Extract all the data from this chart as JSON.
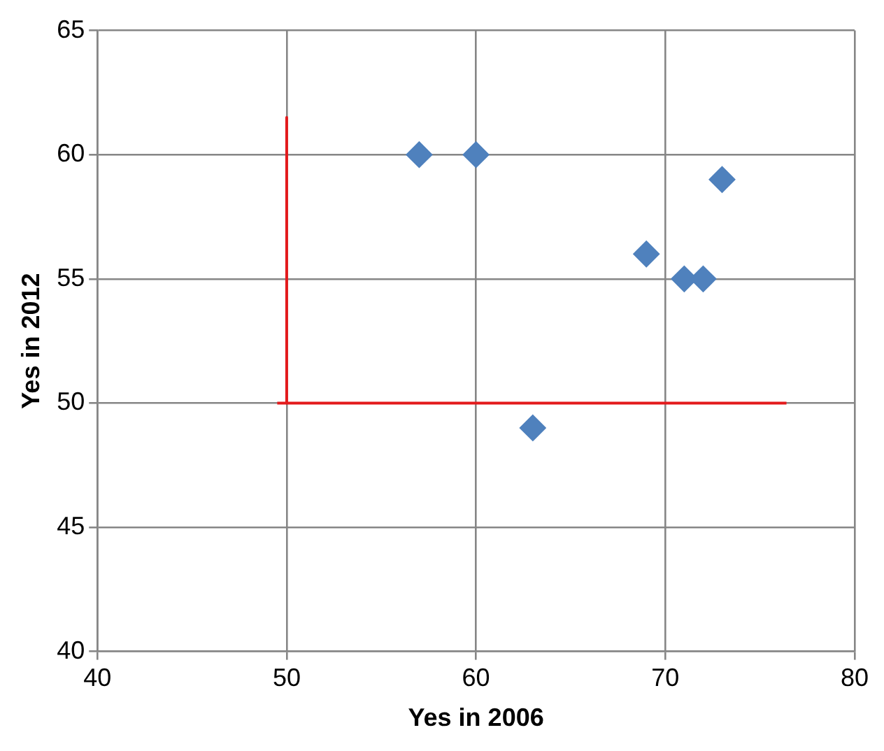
{
  "chart_data": {
    "type": "scatter",
    "xlabel": "Yes in 2006",
    "ylabel": "Yes in 2012",
    "xlim": [
      40,
      80
    ],
    "xticks": [
      40,
      50,
      60,
      70,
      80
    ],
    "ylim": [
      40,
      65
    ],
    "yticks": [
      40,
      45,
      50,
      55,
      60,
      65
    ],
    "grid": true,
    "legend": false,
    "marker": "diamond",
    "series": [
      {
        "color": "#4f81bd",
        "x": [
          57,
          60,
          63,
          69,
          71,
          72,
          73
        ],
        "values": [
          60,
          60,
          49,
          56,
          55,
          55,
          59
        ]
      },
      {
        "type": "line",
        "marker": "none",
        "color": "#e31a1c",
        "x": [
          50,
          50
        ],
        "values": [
          61.5,
          50
        ]
      },
      {
        "type": "line",
        "marker": "none",
        "color": "#e31a1c",
        "x": [
          49.5,
          76.4
        ],
        "values": [
          50,
          50
        ]
      }
    ]
  }
}
